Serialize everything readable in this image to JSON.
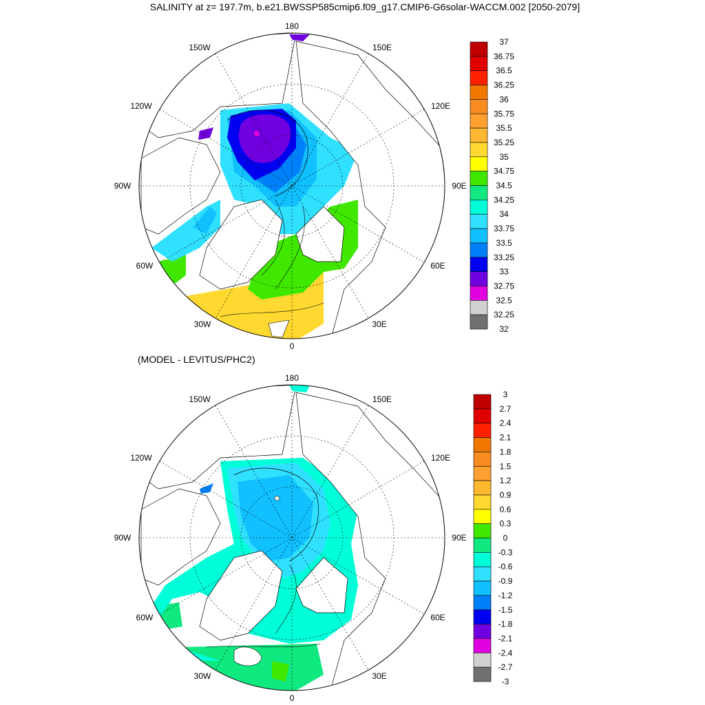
{
  "title": "SALINITY at z= 197.7m, b.e21.BWSSP585cmip6.f09_g17.CMIP6-G6solar-WACCM.002 [2050-2079]",
  "subtitle": "(MODEL - LEVITUS/PHC2)",
  "map_labels": {
    "lon_180": "180",
    "lon_150W": "150W",
    "lon_150E": "150E",
    "lon_120W": "120W",
    "lon_120E": "120E",
    "lon_90W": "90W",
    "lon_90E": "90E",
    "lon_60W": "60W",
    "lon_60E": "60E",
    "lon_30W": "30W",
    "lon_30E": "30E",
    "lon_0": "0"
  },
  "top_colorbar": {
    "labels": [
      "37",
      "36.75",
      "36.5",
      "36.25",
      "36",
      "35.75",
      "35.5",
      "35.25",
      "35",
      "34.75",
      "34.5",
      "34.25",
      "34",
      "33.75",
      "33.5",
      "33.25",
      "33",
      "32.75",
      "32.5",
      "32.25",
      "32"
    ],
    "colors": [
      "#c00000",
      "#e00000",
      "#ff2000",
      "#f07800",
      "#f88c20",
      "#ffa030",
      "#ffb830",
      "#ffd830",
      "#ffff00",
      "#40e800",
      "#10e880",
      "#00ffd8",
      "#30e0ff",
      "#10c0ff",
      "#0080f8",
      "#0000f0",
      "#7000e0",
      "#e000e0",
      "#d0d0d0",
      "#707070"
    ]
  },
  "bottom_colorbar": {
    "labels": [
      "3",
      "2.7",
      "2.4",
      "2.1",
      "1.8",
      "1.5",
      "1.2",
      "0.9",
      "0.6",
      "0.3",
      "0",
      "-0.3",
      "-0.6",
      "-0.9",
      "-1.2",
      "-1.5",
      "-1.8",
      "-2.1",
      "-2.4",
      "-2.7",
      "-3"
    ],
    "colors": [
      "#c00000",
      "#e00000",
      "#ff2000",
      "#f07800",
      "#f88c20",
      "#ffa030",
      "#ffb830",
      "#ffd830",
      "#ffff00",
      "#40e800",
      "#10e880",
      "#00ffd8",
      "#30e0ff",
      "#10c0ff",
      "#0080f8",
      "#0000f0",
      "#7000e0",
      "#e000e0",
      "#d0d0d0",
      "#707070"
    ]
  },
  "colors": {
    "land": "#ffffff",
    "frame": "#000000",
    "grid": "#000000"
  }
}
